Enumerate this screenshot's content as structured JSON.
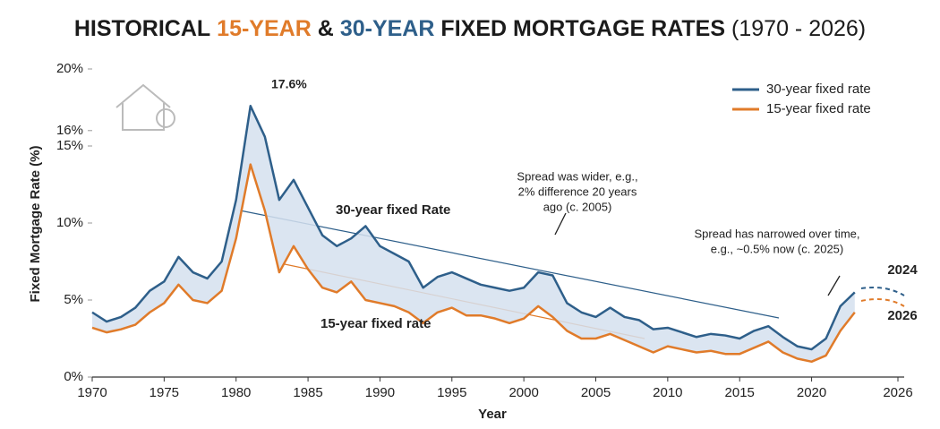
{
  "chart_data": {
    "type": "line",
    "title": [
      "HISTORICAL",
      "15-YEAR",
      "&",
      "30-YEAR",
      "FIXED MORTGAGE RATES",
      "(1970 - 2026)"
    ],
    "title_colors": [
      "#1b1b1b",
      "#e07b2a",
      "#1b1b1b",
      "#2e5f8a",
      "#1b1b1b",
      "#1b1b1b"
    ],
    "xlabel": "Year",
    "ylabel": "Fixed Mortgage Rate (%)",
    "x": [
      1970,
      1971,
      1972,
      1973,
      1974,
      1975,
      1976,
      1977,
      1978,
      1979,
      1980,
      1981,
      1982,
      1983,
      1984,
      1985,
      1986,
      1987,
      1988,
      1989,
      1990,
      1991,
      1992,
      1993,
      1994,
      1995,
      1996,
      1997,
      1998,
      1999,
      2000,
      2001,
      2002,
      2003,
      2004,
      2005,
      2006,
      2007,
      2008,
      2009,
      2010,
      2011,
      2012,
      2013,
      2014,
      2015,
      2016,
      2017,
      2018,
      2019,
      2020,
      2021,
      2022,
      2023
    ],
    "series": [
      {
        "name": "30-year fixed rate",
        "color": "#2e5f8a",
        "values": [
          4.2,
          3.6,
          3.9,
          4.5,
          5.6,
          6.2,
          7.8,
          6.8,
          6.4,
          7.5,
          11.5,
          17.6,
          15.6,
          11.5,
          12.8,
          11.0,
          9.2,
          8.5,
          9.0,
          9.8,
          8.5,
          8.0,
          7.5,
          5.8,
          6.5,
          6.8,
          6.4,
          6.0,
          5.8,
          5.6,
          5.8,
          6.8,
          6.6,
          4.8,
          4.2,
          3.9,
          4.5,
          3.9,
          3.7,
          3.1,
          3.2,
          2.9,
          2.6,
          2.8,
          2.7,
          2.5,
          3.0,
          3.3,
          2.6,
          2.0,
          1.8,
          2.5,
          4.6,
          5.5
        ]
      },
      {
        "name": "15-year fixed rate",
        "color": "#e07b2a",
        "values": [
          3.2,
          2.9,
          3.1,
          3.4,
          4.2,
          4.8,
          6.0,
          5.0,
          4.8,
          5.6,
          9.0,
          13.8,
          10.8,
          6.8,
          8.5,
          7.0,
          5.8,
          5.5,
          6.2,
          5.0,
          4.8,
          4.6,
          4.2,
          3.5,
          4.2,
          4.5,
          4.0,
          4.0,
          3.8,
          3.5,
          3.8,
          4.6,
          3.9,
          3.0,
          2.5,
          2.5,
          2.8,
          2.4,
          2.0,
          1.6,
          2.0,
          1.8,
          1.6,
          1.7,
          1.5,
          1.5,
          1.9,
          2.3,
          1.6,
          1.2,
          1.0,
          1.4,
          3.0,
          4.2
        ]
      }
    ],
    "xlim": [
      1970,
      2026
    ],
    "xticks": [
      1970,
      1975,
      1980,
      1985,
      1990,
      1995,
      2000,
      2005,
      2010,
      2015,
      2020,
      2026
    ],
    "ylim": [
      0,
      20
    ],
    "yticks": [
      {
        "value": 0,
        "label": "0%"
      },
      {
        "value": 5,
        "label": "5%"
      },
      {
        "value": 10,
        "label": "10%"
      },
      {
        "value": 15,
        "label": "15%"
      },
      {
        "value": 16,
        "label": "16%"
      },
      {
        "value": 20,
        "label": "20%"
      }
    ],
    "legend": "top-right",
    "annotations": [
      {
        "lines": [
          "17.6%"
        ]
      },
      {
        "lines": [
          "30-year fixed Rate"
        ]
      },
      {
        "lines": [
          "15-year fixed rate"
        ]
      },
      {
        "lines": [
          "Spread was wider, e.g.,",
          "2% difference 20 years",
          "ago (c. 2005)"
        ]
      },
      {
        "lines": [
          "Spread has narrowed over time,",
          "e.g., ~0.5% now (c. 2025)"
        ]
      },
      {
        "lines": [
          "2024"
        ]
      },
      {
        "lines": [
          "2026"
        ]
      }
    ]
  }
}
